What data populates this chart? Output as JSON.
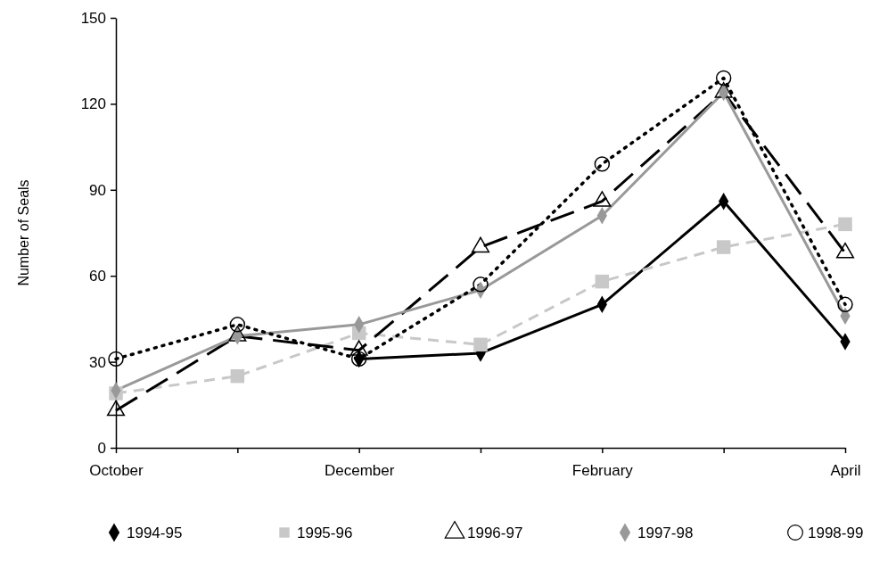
{
  "chart_data": {
    "type": "line",
    "ylabel": "Number of Seals",
    "categories": [
      "October",
      null,
      "December",
      null,
      "February",
      null,
      "April"
    ],
    "ylim": [
      0,
      150
    ],
    "yticks": [
      0,
      30,
      60,
      90,
      120,
      150
    ],
    "grid": false,
    "legend": "bottom",
    "series": [
      {
        "name": "1994-95",
        "color": "#000000",
        "marker": "diamond",
        "line_style": "solid",
        "values": [
          null,
          null,
          31,
          33,
          50,
          86,
          37
        ]
      },
      {
        "name": "1995-96",
        "color": "#c8c8c8",
        "marker": "square",
        "line_style": "dashed",
        "values": [
          19,
          25,
          40,
          36,
          58,
          70,
          78
        ]
      },
      {
        "name": "1996-97",
        "color": "#000000",
        "marker": "triangle",
        "line_style": "dashed",
        "values": [
          13,
          39,
          34,
          70,
          86,
          124,
          68
        ]
      },
      {
        "name": "1997-98",
        "color": "#999999",
        "marker": "diamond",
        "line_style": "solid",
        "values": [
          20,
          39,
          43,
          55,
          81,
          124,
          46
        ]
      },
      {
        "name": "1998-99",
        "color": "#000000",
        "marker": "circle",
        "line_style": "dotted",
        "values": [
          31,
          43,
          31,
          57,
          99,
          129,
          50
        ]
      }
    ]
  }
}
